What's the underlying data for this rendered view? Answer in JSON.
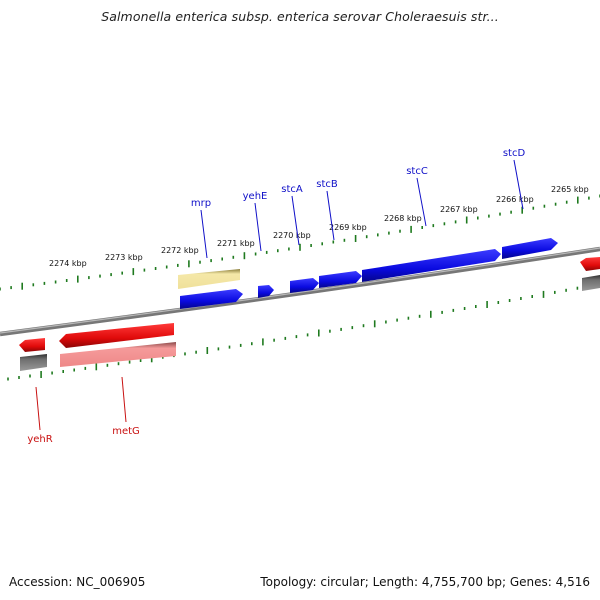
{
  "title": "Salmonella enterica subsp. enterica serovar Choleraesuis str...",
  "footer": {
    "accession": "Accession: NC_006905",
    "summary": "Topology: circular; Length: 4,755,700 bp; Genes: 4,516"
  },
  "colors": {
    "forward_gene": "#1414e6",
    "reverse_gene": "#e61414",
    "rna_gene": "#f2e39a",
    "pseudo_gene": "#f08c8c",
    "other_feature": "#6b6b6b",
    "ticks": "#1f7a1f",
    "backbone": "#8a8a8a"
  },
  "scale_labels": [
    "2274 kbp",
    "2273 kbp",
    "2272 kbp",
    "2271 kbp",
    "2270 kbp",
    "2269 kbp",
    "2268 kbp",
    "2267 kbp",
    "2266 kbp",
    "2265 kbp"
  ],
  "gene_labels": {
    "forward": [
      "mrp",
      "yehE",
      "stcA",
      "stcB",
      "stcC",
      "stcD"
    ],
    "reverse": [
      "yehR",
      "metG"
    ]
  }
}
